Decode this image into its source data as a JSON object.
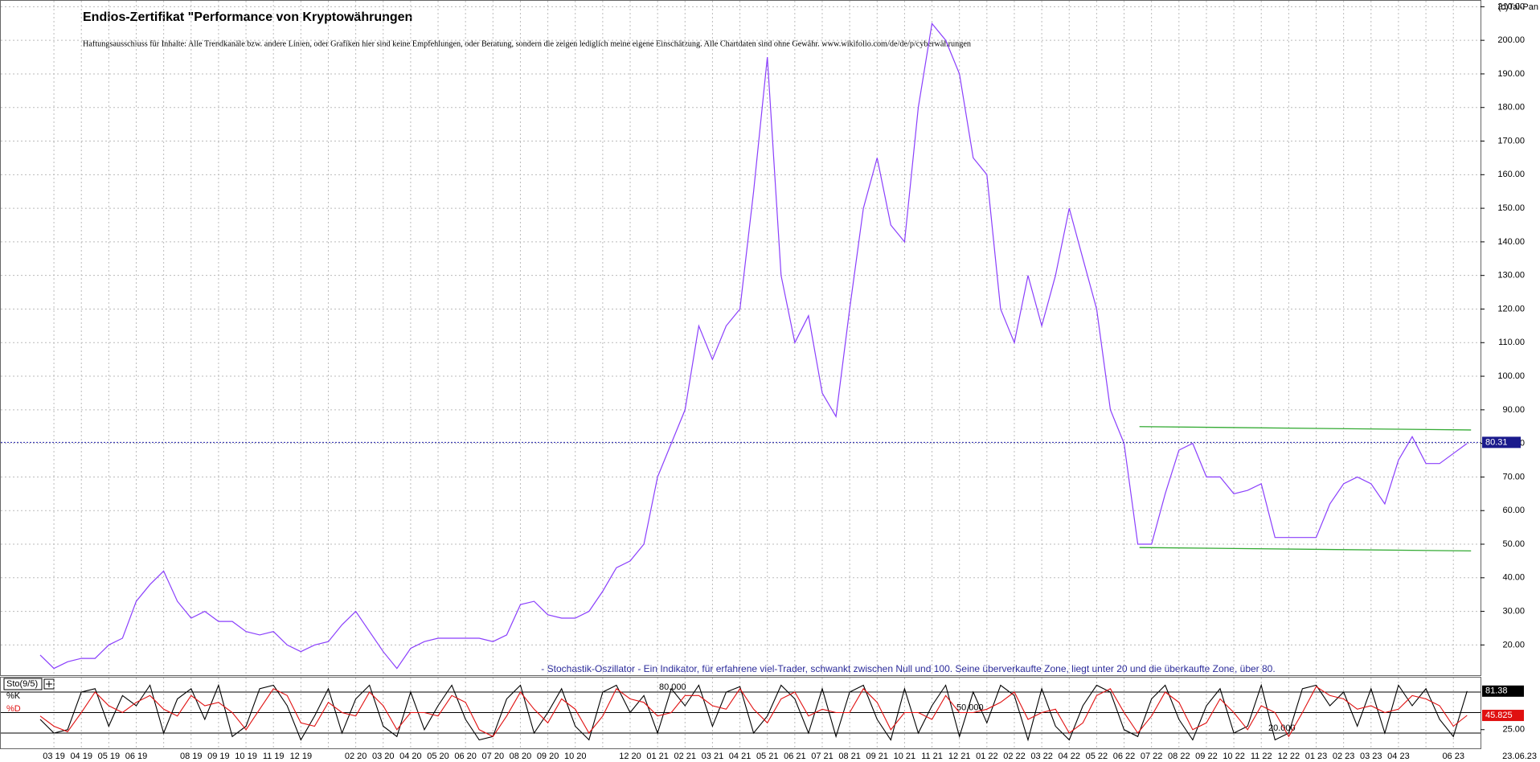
{
  "chart_data": {
    "type": "line",
    "title": "Endlos-Zertifikat \"Performance von Kryptowährungen",
    "subtitle": "Haftungsausschluss für Inhalte: Alle Trendkanäle bzw. andere Linien, oder Grafiken hier sind keine Empfehlungen, oder Beratung, sondern die zeigen lediglich meine eigene Einschätzung. Alle Chartdaten sind ohne Gewähr.  www.wikifolio.com/de/de/p/cyberwährungen",
    "source": "(c)Tai-Pan",
    "date_label": "23.06.23",
    "color": "#8a3ffc",
    "grid": true,
    "categories": [
      null,
      "03 19",
      null,
      "04 19",
      null,
      "05 19",
      null,
      "06 19",
      null,
      null,
      null,
      "08 19",
      null,
      "09 19",
      null,
      "10 19",
      null,
      "11 19",
      null,
      "12 19",
      null,
      null,
      null,
      "02 20",
      null,
      "03 20",
      null,
      "04 20",
      null,
      "05 20",
      null,
      "06 20",
      null,
      "07 20",
      null,
      "08 20",
      null,
      "09 20",
      null,
      "10 20",
      null,
      null,
      null,
      "12 20",
      null,
      "01 21",
      null,
      "02 21",
      null,
      "03 21",
      null,
      "04 21",
      null,
      "05 21",
      null,
      "06 21",
      null,
      "07 21",
      null,
      "08 21",
      null,
      "09 21",
      null,
      "10 21",
      null,
      "11 21",
      null,
      "12 21",
      null,
      "01 22",
      null,
      "02 22",
      null,
      "03 22",
      null,
      "04 22",
      null,
      "05 22",
      null,
      "06 22",
      null,
      "07 22",
      null,
      "08 22",
      null,
      "09 22",
      null,
      "10 22",
      null,
      "11 22",
      null,
      "12 22",
      null,
      "01 23",
      null,
      "02 23",
      null,
      "03 23",
      null,
      "04 23",
      null,
      null,
      null,
      "06 23",
      null
    ],
    "values": [
      17,
      13,
      15,
      16,
      16,
      20,
      22,
      33,
      38,
      42,
      33,
      28,
      30,
      27,
      27,
      24,
      23,
      24,
      20,
      18,
      20,
      21,
      26,
      30,
      24,
      18,
      13,
      19,
      21,
      22,
      22,
      22,
      22,
      21,
      23,
      32,
      33,
      29,
      28,
      28,
      30,
      36,
      43,
      45,
      50,
      70,
      80,
      90,
      115,
      105,
      115,
      120,
      155,
      195,
      130,
      110,
      118,
      95,
      88,
      120,
      150,
      165,
      145,
      140,
      180,
      205,
      200,
      190,
      165,
      160,
      120,
      110,
      130,
      115,
      130,
      150,
      135,
      120,
      90,
      80,
      50,
      50,
      65,
      78,
      80,
      70,
      70,
      65,
      66,
      68,
      52,
      52,
      52,
      52,
      62,
      68,
      70,
      68,
      62,
      75,
      82,
      74,
      74,
      77,
      80
    ],
    "ylim": [
      11,
      212
    ],
    "yticks": [
      {
        "value": 20,
        "label": "20.00"
      },
      {
        "value": 30,
        "label": "30.00"
      },
      {
        "value": 40,
        "label": "40.00"
      },
      {
        "value": 50,
        "label": "50.00"
      },
      {
        "value": 60,
        "label": "60.00"
      },
      {
        "value": 70,
        "label": "70.00"
      },
      {
        "value": 80,
        "label": "80.00"
      },
      {
        "value": 90,
        "label": "90.00"
      },
      {
        "value": 100,
        "label": "100.00"
      },
      {
        "value": 110,
        "label": "110.00"
      },
      {
        "value": 120,
        "label": "120.00"
      },
      {
        "value": 130,
        "label": "130.00"
      },
      {
        "value": 140,
        "label": "140.00"
      },
      {
        "value": 150,
        "label": "150.00"
      },
      {
        "value": 160,
        "label": "160.00"
      },
      {
        "value": 170,
        "label": "170.00"
      },
      {
        "value": 180,
        "label": "180.00"
      },
      {
        "value": 190,
        "label": "190.00"
      },
      {
        "value": 200,
        "label": "200.00"
      },
      {
        "value": 210,
        "label": "210.00"
      }
    ],
    "last_value": 80.31,
    "trend_lines": [
      {
        "color": "#33aa33",
        "x": [
          "07 22",
          "06 23"
        ],
        "values": [
          85,
          84
        ]
      },
      {
        "color": "#33aa33",
        "x": [
          "07 22",
          "06 23"
        ],
        "values": [
          49,
          48
        ]
      }
    ],
    "indicator": {
      "name": "Sto(9/5)",
      "annotation": "- Stochastik-Oszillator - Ein Indikator, für erfahrene viel-Trader, schwankt zwischen Null und 100. Seine überverkaufte Zone, liegt unter 20 und die überkaufte Zone, über 80.",
      "ylim": [
        0,
        100
      ],
      "yticks": [
        {
          "value": 25,
          "label": "25.00"
        }
      ],
      "levels": [
        {
          "value": 80,
          "label": "80.000"
        },
        {
          "value": 50,
          "label": "50.000"
        },
        {
          "value": 20,
          "label": "20.000"
        }
      ],
      "series": [
        {
          "name": "%K",
          "color": "#000000",
          "values": [
            40,
            20,
            25,
            80,
            85,
            30,
            75,
            60,
            90,
            20,
            70,
            85,
            40,
            90,
            15,
            30,
            85,
            90,
            60,
            10,
            45,
            85,
            20,
            70,
            90,
            30,
            15,
            80,
            25,
            60,
            90,
            40,
            10,
            15,
            70,
            90,
            20,
            50,
            85,
            30,
            10,
            80,
            90,
            50,
            75,
            20,
            85,
            60,
            90,
            30,
            80,
            88,
            20,
            45,
            90,
            70,
            20,
            85,
            15,
            80,
            90,
            40,
            10,
            85,
            20,
            60,
            90,
            15,
            80,
            35,
            90,
            75,
            10,
            85,
            30,
            10,
            60,
            90,
            80,
            25,
            15,
            70,
            90,
            40,
            10,
            60,
            85,
            20,
            30,
            90,
            10,
            20,
            85,
            90,
            60,
            80,
            30,
            85,
            20,
            90,
            60,
            85,
            40,
            15,
            81.38
          ]
        },
        {
          "name": "%D",
          "color": "#e01010",
          "values": [
            45,
            30,
            22,
            50,
            80,
            60,
            50,
            65,
            75,
            55,
            45,
            75,
            60,
            65,
            50,
            25,
            55,
            85,
            75,
            35,
            30,
            65,
            50,
            45,
            80,
            60,
            25,
            50,
            50,
            45,
            75,
            65,
            25,
            15,
            45,
            80,
            55,
            35,
            70,
            55,
            20,
            45,
            85,
            70,
            65,
            45,
            50,
            75,
            75,
            60,
            55,
            85,
            55,
            35,
            70,
            80,
            45,
            55,
            50,
            50,
            85,
            65,
            25,
            50,
            50,
            40,
            75,
            50,
            50,
            55,
            65,
            80,
            40,
            50,
            55,
            20,
            35,
            75,
            85,
            50,
            20,
            45,
            80,
            65,
            25,
            35,
            70,
            50,
            25,
            60,
            50,
            15,
            50,
            88,
            75,
            70,
            55,
            60,
            50,
            55,
            75,
            70,
            60,
            30,
            45.825
          ]
        }
      ]
    }
  }
}
